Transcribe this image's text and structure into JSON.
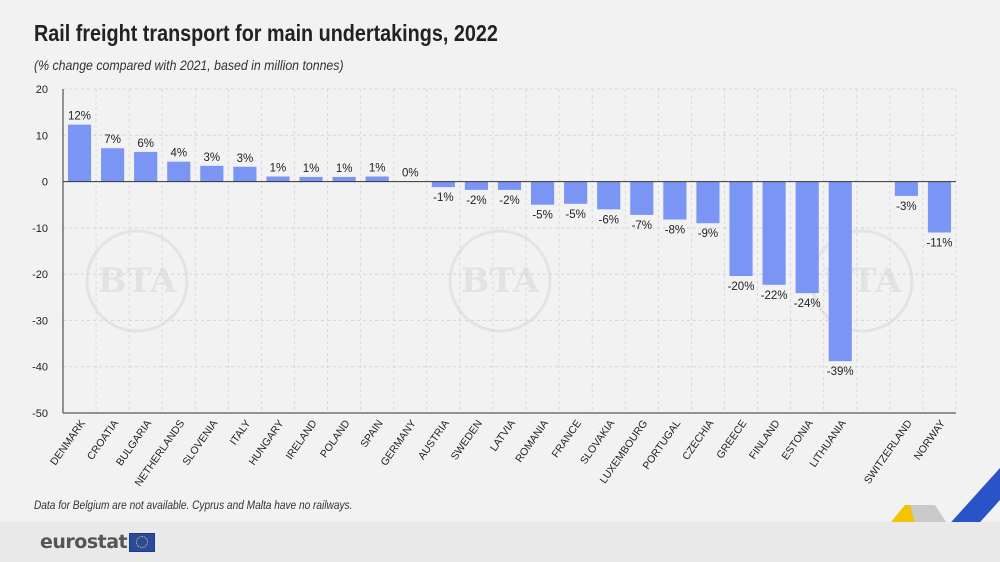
{
  "title": "Rail freight transport for main undertakings, 2022",
  "subtitle": "(% change compared with 2021, based in million tonnes)",
  "footnote": "Data for Belgium are not available. Cyprus and Malta have no railways.",
  "brand": "eurostat",
  "watermark_text": "BTA",
  "colors": {
    "bar": "#7b95f5",
    "grid": "#d4d4d4",
    "axis": "#333333",
    "text": "#222222",
    "corner_yellow": "#f3c200",
    "corner_blue": "#2a53c8"
  },
  "chart_data": {
    "type": "bar",
    "title": "Rail freight transport for main undertakings, 2022",
    "subtitle": "(% change compared with 2021, based in million tonnes)",
    "categories": [
      "DENMARK",
      "CROATIA",
      "BULGARIA",
      "NETHERLANDS",
      "SLOVENIA",
      "ITALY",
      "HUNGARY",
      "IRELAND",
      "POLAND",
      "SPAIN",
      "GERMANY",
      "AUSTRIA",
      "SWEDEN",
      "LATVIA",
      "ROMANIA",
      "FRANCE",
      "SLOVAKIA",
      "LUXEMBOURG",
      "PORTUGAL",
      "CZECHIA",
      "GREECE",
      "FINLAND",
      "ESTONIA",
      "LITHUANIA",
      "",
      "SWITZERLAND",
      "NORWAY"
    ],
    "values": [
      12.3,
      7.2,
      6.4,
      4.3,
      3.4,
      3.2,
      1.1,
      1.0,
      1.0,
      1.1,
      0,
      -1.2,
      -1.8,
      -1.8,
      -5.0,
      -4.8,
      -6.0,
      -7.2,
      -8.2,
      -9.0,
      -20.4,
      -22.3,
      -24.1,
      -38.8,
      null,
      -3.1,
      -11.0
    ],
    "data_labels": [
      "12%",
      "7%",
      "6%",
      "4%",
      "3%",
      "3%",
      "1%",
      "1%",
      "1%",
      "1%",
      "0%",
      "-1%",
      "-2%",
      "-2%",
      "-5%",
      "-5%",
      "-6%",
      "-7%",
      "-8%",
      "-9%",
      "-20%",
      "-22%",
      "-24%",
      "-39%",
      "",
      "-3%",
      "-11%"
    ],
    "y_ticks": [
      20,
      10,
      0,
      -10,
      -20,
      -30,
      -40,
      -50
    ],
    "ylim": [
      -50,
      20
    ],
    "xlabel": "",
    "ylabel": "",
    "grid": true
  }
}
